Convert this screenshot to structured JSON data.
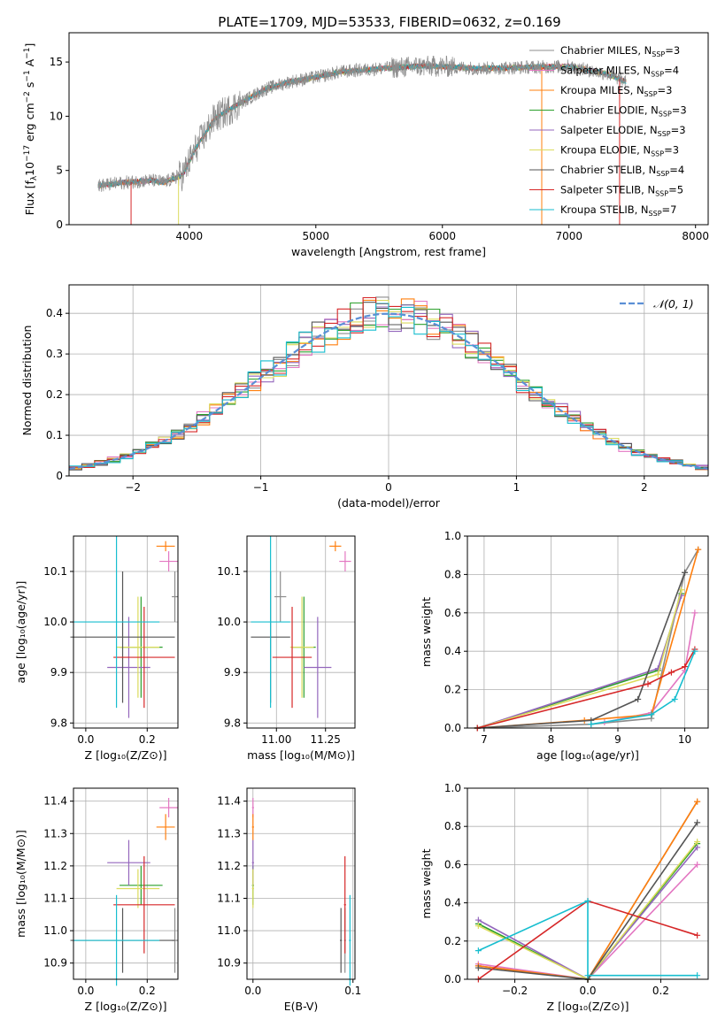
{
  "title": "PLATE=1709, MJD=53533, FIBERID=0632, z=0.169",
  "colors": {
    "Chabrier MILES": "#8c8c8c",
    "Salpeter MILES": "#e377c2",
    "Kroupa MILES": "#ff7f0e",
    "Chabrier ELODIE": "#2ca02c",
    "Salpeter ELODIE": "#9467bd",
    "Kroupa ELODIE": "#dbdb5d",
    "Chabrier STELIB": "#555555",
    "Salpeter STELIB": "#d62728",
    "Kroupa STELIB": "#17becf",
    "gauss": "#5b8fd6"
  },
  "chart_data": [
    {
      "id": "spectrum",
      "type": "line",
      "xlabel": "wavelength [Angstrom, rest frame]",
      "ylabel": "Flux [fλ10⁻¹⁷ erg cm⁻² s⁻¹ A⁻¹]",
      "xlim": [
        3050,
        8100
      ],
      "ylim": [
        0,
        17.7
      ],
      "xticks": [
        4000,
        5000,
        6000,
        7000,
        8000
      ],
      "yticks": [
        0,
        5,
        10,
        15
      ],
      "grid": false,
      "legend_position": "top-right",
      "legend": [
        "Chabrier MILES, N_SSP=3",
        "Salpeter MILES, N_SSP=4",
        "Kroupa MILES, N_SSP=3",
        "Chabrier ELODIE, N_SSP=3",
        "Salpeter ELODIE, N_SSP=3",
        "Kroupa ELODIE, N_SSP=3",
        "Chabrier STELIB, N_SSP=4",
        "Salpeter STELIB, N_SSP=5",
        "Kroupa STELIB, N_SSP=7"
      ],
      "legend_html": [
        "Chabrier MILES, N<tspan font-size=\"8\" dy=\"3\">SSP</tspan><tspan dy=\"-3\">=3</tspan>",
        "Salpeter MILES, N<tspan font-size=\"8\" dy=\"3\">SSP</tspan><tspan dy=\"-3\">=4</tspan>",
        "Kroupa MILES, N<tspan font-size=\"8\" dy=\"3\">SSP</tspan><tspan dy=\"-3\">=3</tspan>",
        "Chabrier ELODIE, N<tspan font-size=\"8\" dy=\"3\">SSP</tspan><tspan dy=\"-3\">=3</tspan>",
        "Salpeter ELODIE, N<tspan font-size=\"8\" dy=\"3\">SSP</tspan><tspan dy=\"-3\">=3</tspan>",
        "Kroupa ELODIE, N<tspan font-size=\"8\" dy=\"3\">SSP</tspan><tspan dy=\"-3\">=3</tspan>",
        "Chabrier STELIB, N<tspan font-size=\"8\" dy=\"3\">SSP</tspan><tspan dy=\"-3\">=4</tspan>",
        "Salpeter STELIB, N<tspan font-size=\"8\" dy=\"3\">SSP</tspan><tspan dy=\"-3\">=5</tspan>",
        "Kroupa STELIB, N<tspan font-size=\"8\" dy=\"3\">SSP</tspan><tspan dy=\"-3\">=7</tspan>"
      ],
      "continuum": [
        [
          3280,
          3.6
        ],
        [
          3500,
          3.9
        ],
        [
          3700,
          4.1
        ],
        [
          3800,
          3.9
        ],
        [
          3950,
          4.6
        ],
        [
          4050,
          7.0
        ],
        [
          4200,
          9.8
        ],
        [
          4400,
          11.2
        ],
        [
          4600,
          12.5
        ],
        [
          4800,
          13.2
        ],
        [
          5000,
          13.6
        ],
        [
          5200,
          14.1
        ],
        [
          5500,
          14.4
        ],
        [
          5800,
          14.6
        ],
        [
          6000,
          14.6
        ],
        [
          6300,
          14.4
        ],
        [
          6600,
          14.5
        ],
        [
          7000,
          14.6
        ],
        [
          7300,
          13.9
        ],
        [
          7450,
          13.2
        ]
      ],
      "observed_range": [
        3280,
        7450
      ],
      "observed_series": "Chabrier MILES"
    },
    {
      "id": "residuals",
      "type": "bar",
      "xlabel": "(data-model)/error",
      "ylabel": "Normed distribution",
      "xlim": [
        -2.5,
        2.5
      ],
      "ylim": [
        0,
        0.47
      ],
      "xticks": [
        -2,
        -1,
        0,
        1,
        2
      ],
      "yticks": [
        0,
        0.1,
        0.2,
        0.3,
        0.4
      ],
      "grid": true,
      "legend_position": "top-right",
      "legend": [
        "𝒩(0, 1)"
      ],
      "bin_width": 0.1
    },
    {
      "id": "age_vs_Z",
      "type": "scatter",
      "xlabel": "Z [log₁₀(Z/Z⊙)]",
      "ylabel": "age  [log₁₀(age/yr)]",
      "xlim": [
        -0.04,
        0.3
      ],
      "ylim": [
        9.79,
        10.17
      ],
      "xticks": [
        0.0,
        0.2
      ],
      "yticks": [
        9.8,
        9.9,
        10.0,
        10.1
      ],
      "grid": true
    },
    {
      "id": "age_vs_mass",
      "type": "scatter",
      "xlabel": "mass [log₁₀(M/M⊙)]",
      "ylabel": "",
      "xlim": [
        10.85,
        11.4
      ],
      "ylim": [
        9.79,
        10.17
      ],
      "xticks": [
        11.0,
        11.25
      ],
      "yticks": [
        9.8,
        9.9,
        10.0,
        10.1
      ],
      "grid": true
    },
    {
      "id": "weight_vs_age",
      "type": "line",
      "xlabel": "age  [log₁₀(age/yr)]",
      "ylabel": "mass weight",
      "xlim": [
        6.75,
        10.35
      ],
      "ylim": [
        0,
        1.0
      ],
      "xticks": [
        7,
        8,
        9,
        10
      ],
      "yticks": [
        0.0,
        0.2,
        0.4,
        0.6,
        0.8,
        1.0
      ],
      "grid": true
    },
    {
      "id": "mass_vs_Z",
      "type": "scatter",
      "xlabel": "Z [log₁₀(Z/Z⊙)]",
      "ylabel": "mass [log₁₀(M/M⊙)]",
      "xlim": [
        -0.04,
        0.3
      ],
      "ylim": [
        10.85,
        11.44
      ],
      "xticks": [
        0.0,
        0.2
      ],
      "yticks": [
        10.9,
        11.0,
        11.1,
        11.2,
        11.3,
        11.4
      ],
      "grid": true
    },
    {
      "id": "mass_vs_EBV",
      "type": "scatter",
      "xlabel": "E(B-V)",
      "ylabel": "",
      "xlim": [
        -0.006,
        0.102
      ],
      "ylim": [
        10.85,
        11.44
      ],
      "xticks": [
        0.0,
        0.1
      ],
      "yticks": [
        10.9,
        11.0,
        11.1,
        11.2,
        11.3,
        11.4
      ],
      "grid": true
    },
    {
      "id": "weight_vs_Z",
      "type": "line",
      "xlabel": "Z [log₁₀(Z/Z⊙)]",
      "ylabel": "mass weight",
      "xlim": [
        -0.33,
        0.33
      ],
      "ylim": [
        0,
        1.0
      ],
      "xticks": [
        -0.2,
        0.0,
        0.2
      ],
      "yticks": [
        0.0,
        0.2,
        0.4,
        0.6,
        0.8,
        1.0
      ],
      "grid": true
    }
  ],
  "fits": [
    {
      "name": "Chabrier MILES",
      "Z": 0.29,
      "Zerr": 0.01,
      "age": 10.05,
      "ageErr": 0.05,
      "mass": 10.97,
      "massErr": 0.1,
      "massX": 11.02,
      "massXerr": 0.03,
      "ebv": 0.092,
      "ageW": [
        [
          6.9,
          0.0
        ],
        [
          8.6,
          0.02
        ],
        [
          9.5,
          0.05
        ],
        [
          10.0,
          0.81
        ],
        [
          10.2,
          0.93
        ]
      ],
      "zW": [
        [
          -0.3,
          0.07
        ],
        [
          0.0,
          0.0
        ],
        [
          0.3,
          0.93
        ]
      ]
    },
    {
      "name": "Salpeter MILES",
      "Z": 0.27,
      "Zerr": 0.03,
      "age": 10.12,
      "ageErr": 0.02,
      "mass": 11.38,
      "massErr": 0.03,
      "massX": 11.35,
      "massXerr": 0.03,
      "ebv": 0.0,
      "ageW": [
        [
          8.8,
          0.03
        ],
        [
          9.5,
          0.08
        ],
        [
          10.0,
          0.3
        ],
        [
          10.15,
          0.6
        ]
      ],
      "zW": [
        [
          -0.3,
          0.08
        ],
        [
          0.0,
          0.0
        ],
        [
          0.3,
          0.6
        ]
      ]
    },
    {
      "name": "Kroupa MILES",
      "Z": 0.26,
      "Zerr": 0.03,
      "age": 10.15,
      "ageErr": 0.01,
      "mass": 11.32,
      "massErr": 0.04,
      "massX": 11.3,
      "massXerr": 0.03,
      "ebv": 0.0,
      "ageW": [
        [
          6.9,
          0.0
        ],
        [
          8.5,
          0.04
        ],
        [
          9.5,
          0.07
        ],
        [
          10.2,
          0.93
        ]
      ],
      "zW": [
        [
          -0.3,
          0.07
        ],
        [
          0.0,
          0.0
        ],
        [
          0.3,
          0.93
        ]
      ]
    },
    {
      "name": "Chabrier ELODIE",
      "Z": 0.18,
      "Zerr": 0.07,
      "age": 9.95,
      "ageErr": 0.1,
      "mass": 11.14,
      "massErr": 0.06,
      "massX": 11.14,
      "massXerr": 0.06,
      "ebv": 0.0,
      "ageW": [
        [
          6.9,
          0.0
        ],
        [
          9.6,
          0.3
        ],
        [
          9.95,
          0.7
        ]
      ],
      "zW": [
        [
          -0.3,
          0.29
        ],
        [
          0.0,
          0.0
        ],
        [
          0.3,
          0.71
        ]
      ]
    },
    {
      "name": "Salpeter ELODIE",
      "Z": 0.14,
      "Zerr": 0.07,
      "age": 9.91,
      "ageErr": 0.1,
      "mass": 11.21,
      "massErr": 0.07,
      "massX": 11.21,
      "massXerr": 0.07,
      "ebv": 0.0,
      "ageW": [
        [
          6.9,
          0.0
        ],
        [
          9.6,
          0.31
        ],
        [
          9.95,
          0.69
        ]
      ],
      "zW": [
        [
          -0.3,
          0.31
        ],
        [
          0.0,
          0.0
        ],
        [
          0.3,
          0.69
        ]
      ]
    },
    {
      "name": "Kroupa ELODIE",
      "Z": 0.17,
      "Zerr": 0.07,
      "age": 9.95,
      "ageErr": 0.1,
      "mass": 11.13,
      "massErr": 0.06,
      "massX": 11.13,
      "massXerr": 0.06,
      "ebv": 0.0,
      "ageW": [
        [
          6.9,
          0.0
        ],
        [
          9.6,
          0.28
        ],
        [
          9.95,
          0.72
        ]
      ],
      "zW": [
        [
          -0.3,
          0.28
        ],
        [
          0.0,
          0.0
        ],
        [
          0.3,
          0.72
        ]
      ]
    },
    {
      "name": "Chabrier STELIB",
      "Z": 0.12,
      "Zerr": 0.17,
      "age": 9.97,
      "ageErr": 0.13,
      "mass": 10.97,
      "massErr": 0.1,
      "massX": 10.97,
      "massXerr": 0.1,
      "ebv": 0.088,
      "ageW": [
        [
          6.9,
          0.0
        ],
        [
          8.6,
          0.04
        ],
        [
          9.3,
          0.15
        ],
        [
          10.0,
          0.81
        ]
      ],
      "zW": [
        [
          -0.3,
          0.06
        ],
        [
          0.0,
          0.0
        ],
        [
          0.3,
          0.82
        ]
      ]
    },
    {
      "name": "Salpeter STELIB",
      "Z": 0.19,
      "Zerr": 0.1,
      "age": 9.93,
      "ageErr": 0.1,
      "mass": 11.08,
      "massErr": 0.15,
      "massX": 11.08,
      "massXerr": 0.1,
      "ebv": 0.092,
      "ageW": [
        [
          6.9,
          0.0
        ],
        [
          9.45,
          0.23
        ],
        [
          9.8,
          0.29
        ],
        [
          10.0,
          0.32
        ],
        [
          10.15,
          0.41
        ]
      ],
      "zW": [
        [
          -0.3,
          0.0
        ],
        [
          0.0,
          0.41
        ],
        [
          0.3,
          0.23
        ]
      ]
    },
    {
      "name": "Kroupa STELIB",
      "Z": 0.1,
      "Zerr": 0.14,
      "age": 10.0,
      "ageErr": 0.17,
      "mass": 10.97,
      "massErr": 0.14,
      "massX": 10.97,
      "massXerr": 0.1,
      "ebv": 0.097,
      "ageW": [
        [
          8.6,
          0.02
        ],
        [
          9.5,
          0.07
        ],
        [
          9.85,
          0.15
        ],
        [
          10.15,
          0.4
        ]
      ],
      "zW": [
        [
          -0.3,
          0.15
        ],
        [
          0.0,
          0.41
        ],
        [
          0.0,
          0.02
        ],
        [
          0.3,
          0.02
        ]
      ]
    }
  ]
}
